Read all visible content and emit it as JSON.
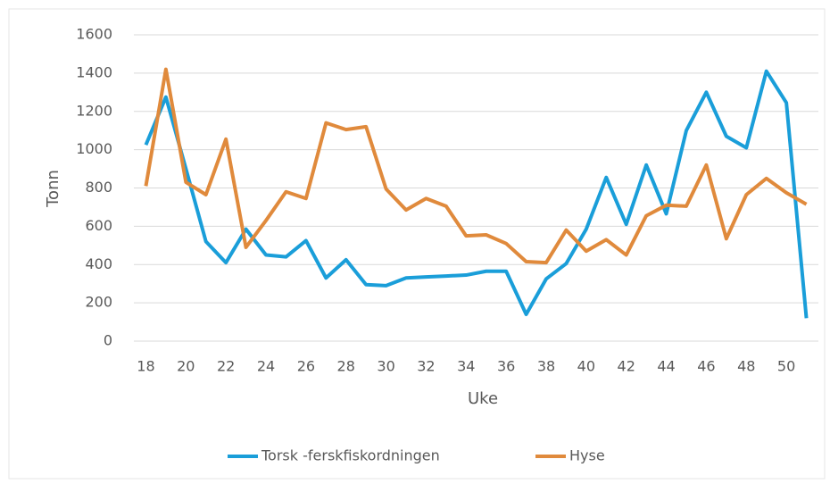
{
  "chart_data": {
    "type": "line",
    "x": [
      18,
      19,
      20,
      21,
      22,
      23,
      24,
      25,
      26,
      27,
      28,
      29,
      30,
      31,
      32,
      33,
      34,
      35,
      36,
      37,
      38,
      39,
      40,
      41,
      42,
      43,
      44,
      45,
      46,
      47,
      48,
      49,
      50,
      51
    ],
    "series": [
      {
        "name": "Torsk -ferskfiskordningen",
        "color": "#1a9ed9",
        "values": [
          1025,
          1275,
          900,
          520,
          410,
          585,
          450,
          440,
          525,
          330,
          425,
          295,
          290,
          330,
          335,
          340,
          345,
          365,
          365,
          140,
          325,
          405,
          585,
          855,
          610,
          920,
          665,
          1100,
          1300,
          1070,
          1010,
          1410,
          1245,
          120
        ]
      },
      {
        "name": "Hyse",
        "color": "#e08a3c",
        "values": [
          810,
          1420,
          830,
          765,
          1055,
          490,
          630,
          780,
          745,
          1140,
          1105,
          1120,
          795,
          685,
          745,
          705,
          550,
          555,
          510,
          415,
          410,
          580,
          470,
          530,
          450,
          655,
          710,
          705,
          920,
          535,
          765,
          850,
          775,
          715
        ]
      }
    ],
    "xlabel": "Uke",
    "ylabel": "Tonn",
    "xlim": [
      17.4,
      51.6
    ],
    "xticks": [
      18,
      20,
      22,
      24,
      26,
      28,
      30,
      32,
      34,
      36,
      38,
      40,
      42,
      44,
      46,
      48,
      50
    ],
    "ylim": [
      0,
      1600
    ],
    "yticks": [
      0,
      200,
      400,
      600,
      800,
      1000,
      1200,
      1400,
      1600
    ],
    "grid": true,
    "legend": "bottom"
  }
}
